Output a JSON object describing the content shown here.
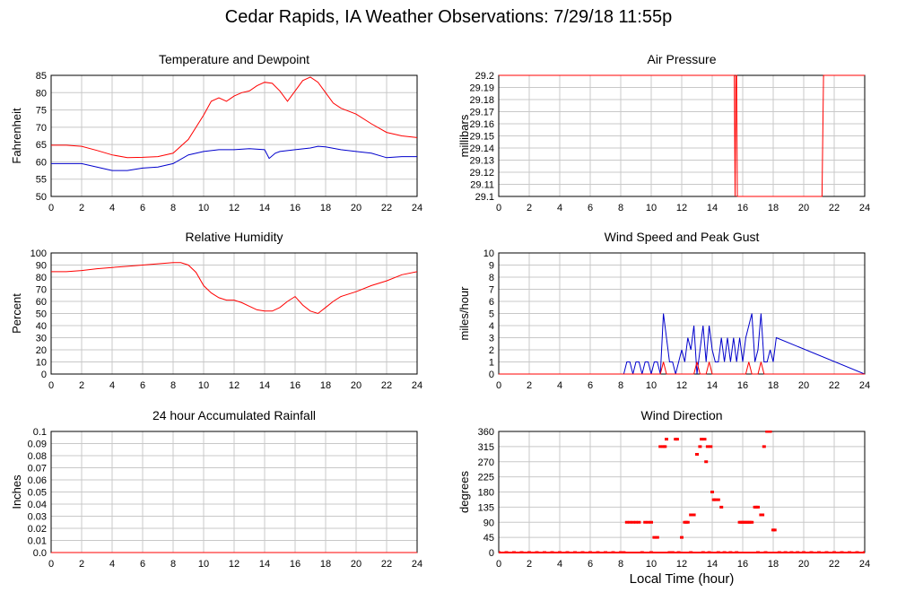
{
  "title": "Cedar Rapids, IA Weather Observations: 7/29/18 11:55p",
  "xlabel": "Local Time (hour)",
  "colors": {
    "red": "#ff0000",
    "blue": "#0000cc",
    "grid": "#c8c8c8",
    "axis": "#000000"
  },
  "chart_data": [
    {
      "id": "temp",
      "type": "line",
      "title": "Temperature and Dewpoint",
      "ylabel": "Fahrenheit",
      "xlim": [
        0,
        24
      ],
      "ylim": [
        50,
        85
      ],
      "xticks": [
        0,
        2,
        4,
        6,
        8,
        10,
        12,
        14,
        16,
        18,
        20,
        22,
        24
      ],
      "yticks": [
        50,
        55,
        60,
        65,
        70,
        75,
        80,
        85
      ],
      "series": [
        {
          "color": "red",
          "x": [
            0,
            1,
            2,
            3,
            4,
            5,
            6,
            7,
            8,
            9,
            10,
            10.5,
            11,
            11.5,
            12,
            12.5,
            13,
            13.5,
            14,
            14.5,
            15,
            15.5,
            16,
            16.5,
            17,
            17.5,
            18,
            18.5,
            19,
            20,
            21,
            22,
            23,
            24
          ],
          "y": [
            64.8,
            64.8,
            64.5,
            63.3,
            62,
            61.2,
            61.3,
            61.5,
            62.5,
            66.5,
            73.5,
            77.5,
            78.5,
            77.5,
            79,
            80,
            80.5,
            82,
            83,
            82.7,
            80.5,
            77.5,
            80.5,
            83.5,
            84.5,
            83,
            80,
            77,
            75.5,
            73.8,
            71,
            68.5,
            67.5,
            67
          ]
        },
        {
          "color": "blue",
          "x": [
            0,
            1,
            2,
            3,
            4,
            5,
            6,
            7,
            8,
            9,
            10,
            11,
            12,
            13,
            14,
            14.3,
            14.7,
            15,
            16,
            17,
            17.5,
            18,
            19,
            20,
            21,
            22,
            23,
            24
          ],
          "y": [
            59.5,
            59.5,
            59.5,
            58.5,
            57.5,
            57.5,
            58.2,
            58.5,
            59.5,
            62,
            63,
            63.5,
            63.5,
            63.8,
            63.5,
            61,
            62.5,
            63,
            63.5,
            64,
            64.5,
            64.3,
            63.5,
            63,
            62.5,
            61.2,
            61.5,
            61.5
          ]
        }
      ]
    },
    {
      "id": "pressure",
      "type": "line",
      "title": "Air Pressure",
      "ylabel": "millibars",
      "xlim": [
        0,
        24
      ],
      "ylim": [
        29.1,
        29.2
      ],
      "xticks": [
        0,
        2,
        4,
        6,
        8,
        10,
        12,
        14,
        16,
        18,
        20,
        22,
        24
      ],
      "yticks": [
        29.1,
        29.11,
        29.12,
        29.13,
        29.14,
        29.15,
        29.16,
        29.17,
        29.18,
        29.19,
        29.2
      ],
      "ytick_labels": [
        "29.1",
        "29.11",
        "29.12",
        "29.13",
        "29.14",
        "29.15",
        "29.16",
        "29.17",
        "29.18",
        "29.19",
        "29.2"
      ],
      "series": [
        {
          "color": "red",
          "x": [
            0,
            15.45,
            15.5,
            15.55,
            15.6,
            15.65,
            21.2,
            21.3,
            24
          ],
          "y": [
            29.2,
            29.2,
            29.1,
            29.2,
            29.2,
            29.1,
            29.1,
            29.2,
            29.2
          ]
        }
      ]
    },
    {
      "id": "rh",
      "type": "line",
      "title": "Relative Humidity",
      "ylabel": "Percent",
      "xlim": [
        0,
        24
      ],
      "ylim": [
        0,
        100
      ],
      "xticks": [
        0,
        2,
        4,
        6,
        8,
        10,
        12,
        14,
        16,
        18,
        20,
        22,
        24
      ],
      "yticks": [
        0,
        10,
        20,
        30,
        40,
        50,
        60,
        70,
        80,
        90,
        100
      ],
      "series": [
        {
          "color": "red",
          "x": [
            0,
            1,
            2,
            3,
            4,
            5,
            6,
            7,
            8,
            8.5,
            9,
            9.5,
            10,
            10.5,
            11,
            11.5,
            12,
            12.5,
            13,
            13.5,
            14,
            14.5,
            15,
            15.5,
            16,
            16.5,
            17,
            17.5,
            18,
            18.5,
            19,
            20,
            21,
            22,
            23,
            24
          ],
          "y": [
            84.5,
            84.5,
            85.5,
            87,
            88,
            89,
            90,
            91,
            92,
            92,
            90,
            84,
            73,
            67,
            63,
            61,
            61,
            59,
            56,
            53,
            52,
            52,
            55,
            60,
            64,
            57,
            52,
            50,
            55,
            60,
            64,
            68,
            73,
            77,
            82,
            84.5
          ]
        }
      ]
    },
    {
      "id": "wind",
      "type": "line",
      "title": "Wind Speed and Peak Gust",
      "ylabel": "miles/hour",
      "xlim": [
        0,
        24
      ],
      "ylim": [
        0,
        10
      ],
      "xticks": [
        0,
        2,
        4,
        6,
        8,
        10,
        12,
        14,
        16,
        18,
        20,
        22,
        24
      ],
      "yticks": [
        0,
        1,
        2,
        3,
        4,
        5,
        6,
        7,
        8,
        9,
        10
      ],
      "series": [
        {
          "color": "blue",
          "x": [
            0,
            8.2,
            8.4,
            8.6,
            8.8,
            9.0,
            9.2,
            9.4,
            9.6,
            9.8,
            10.0,
            10.2,
            10.4,
            10.6,
            10.8,
            11.0,
            11.2,
            11.4,
            11.6,
            11.8,
            12.0,
            12.2,
            12.4,
            12.6,
            12.8,
            13.0,
            13.2,
            13.4,
            13.6,
            13.8,
            14.0,
            14.2,
            14.4,
            14.6,
            14.8,
            15.0,
            15.2,
            15.4,
            15.6,
            15.8,
            16.0,
            16.2,
            16.4,
            16.6,
            16.8,
            17.0,
            17.2,
            17.4,
            17.6,
            17.8,
            18.0,
            18.2,
            24
          ],
          "y": [
            0,
            0,
            1,
            1,
            0,
            1,
            1,
            0,
            1,
            1,
            0,
            1,
            1,
            0,
            5,
            3,
            1,
            1,
            0,
            1,
            2,
            1,
            3,
            2,
            4,
            0,
            2,
            4,
            1,
            4,
            2,
            1,
            1,
            3,
            1,
            3,
            1,
            3,
            1,
            3,
            1,
            3,
            4,
            5,
            1,
            2,
            5,
            1,
            1,
            2,
            1,
            3,
            0
          ]
        },
        {
          "color": "red",
          "x": [
            0,
            10.6,
            10.8,
            11.0,
            12.8,
            13.0,
            13.2,
            13.6,
            13.8,
            14.0,
            16.2,
            16.4,
            16.6,
            17.0,
            17.2,
            17.4,
            24
          ],
          "y": [
            0,
            0,
            1,
            0,
            0,
            1,
            0,
            0,
            1,
            0,
            0,
            1,
            0,
            0,
            1,
            0,
            0
          ]
        }
      ]
    },
    {
      "id": "rain",
      "type": "line",
      "title": "24 hour Accumulated Rainfall",
      "ylabel": "Inches",
      "xlim": [
        0,
        24
      ],
      "ylim": [
        0,
        0.1
      ],
      "xticks": [
        0,
        2,
        4,
        6,
        8,
        10,
        12,
        14,
        16,
        18,
        20,
        22,
        24
      ],
      "yticks": [
        0,
        0.01,
        0.02,
        0.03,
        0.04,
        0.05,
        0.06,
        0.07,
        0.08,
        0.09,
        0.1
      ],
      "ytick_labels": [
        "0.0",
        "0.01",
        "0.02",
        "0.03",
        "0.04",
        "0.05",
        "0.06",
        "0.07",
        "0.08",
        "0.09",
        "0.1"
      ],
      "series": [
        {
          "color": "red",
          "x": [
            0,
            24
          ],
          "y": [
            0,
            0
          ]
        }
      ]
    },
    {
      "id": "winddir",
      "type": "scatter",
      "title": "Wind Direction",
      "ylabel": "degrees",
      "xlim": [
        0,
        24
      ],
      "ylim": [
        0,
        360
      ],
      "xticks": [
        0,
        2,
        4,
        6,
        8,
        10,
        12,
        14,
        16,
        18,
        20,
        22,
        24
      ],
      "yticks": [
        0,
        45,
        90,
        135,
        180,
        225,
        270,
        315,
        360
      ],
      "series": [
        {
          "color": "red",
          "x": [
            8.4,
            8.6,
            8.8,
            9.0,
            9.2,
            9.6,
            9.8,
            10.0,
            10.2,
            10.4,
            10.6,
            10.8,
            10.9,
            11.0,
            11.6,
            11.7,
            12.0,
            12.2,
            12.3,
            12.4,
            12.6,
            12.8,
            13.0,
            13.2,
            13.3,
            13.5,
            13.6,
            13.7,
            13.9,
            14.0,
            14.1,
            14.2,
            14.4,
            14.6,
            15.8,
            15.9,
            16.0,
            16.1,
            16.2,
            16.3,
            16.4,
            16.5,
            16.6,
            16.8,
            16.9,
            17.0,
            17.2,
            17.3,
            17.4,
            17.6,
            17.7,
            17.8,
            18.0,
            18.1
          ],
          "y": [
            90,
            90,
            90,
            90,
            90,
            90,
            90,
            90,
            45,
            45,
            315,
            315,
            315,
            337,
            337,
            337,
            45,
            90,
            90,
            90,
            112,
            112,
            292,
            315,
            337,
            337,
            270,
            315,
            315,
            180,
            157,
            157,
            157,
            135,
            90,
            90,
            90,
            90,
            90,
            90,
            90,
            90,
            90,
            135,
            135,
            135,
            112,
            112,
            315,
            360,
            360,
            360,
            67,
            67
          ]
        },
        {
          "color": "red",
          "x": [
            0,
            0.5,
            1,
            1.5,
            2,
            2.5,
            3,
            3.5,
            4,
            4.5,
            5,
            5.5,
            6,
            6.5,
            7,
            7.5,
            8,
            8.2,
            9.4,
            10.0,
            11.2,
            11.4,
            11.8,
            12.6,
            13.4,
            13.8,
            14.4,
            14.8,
            15.2,
            15.6,
            17.0,
            17.5,
            18.4,
            18.8,
            19.2,
            19.6,
            20,
            20.5,
            21,
            21.5,
            22,
            22.5,
            23,
            23.5,
            24
          ],
          "y": [
            0,
            0,
            0,
            0,
            0,
            0,
            0,
            0,
            0,
            0,
            0,
            0,
            0,
            0,
            0,
            0,
            0,
            0,
            0,
            0,
            0,
            0,
            0,
            0,
            0,
            0,
            0,
            0,
            0,
            0,
            0,
            0,
            0,
            0,
            0,
            0,
            0,
            0,
            0,
            0,
            0,
            0,
            0,
            0,
            0
          ]
        }
      ]
    }
  ]
}
